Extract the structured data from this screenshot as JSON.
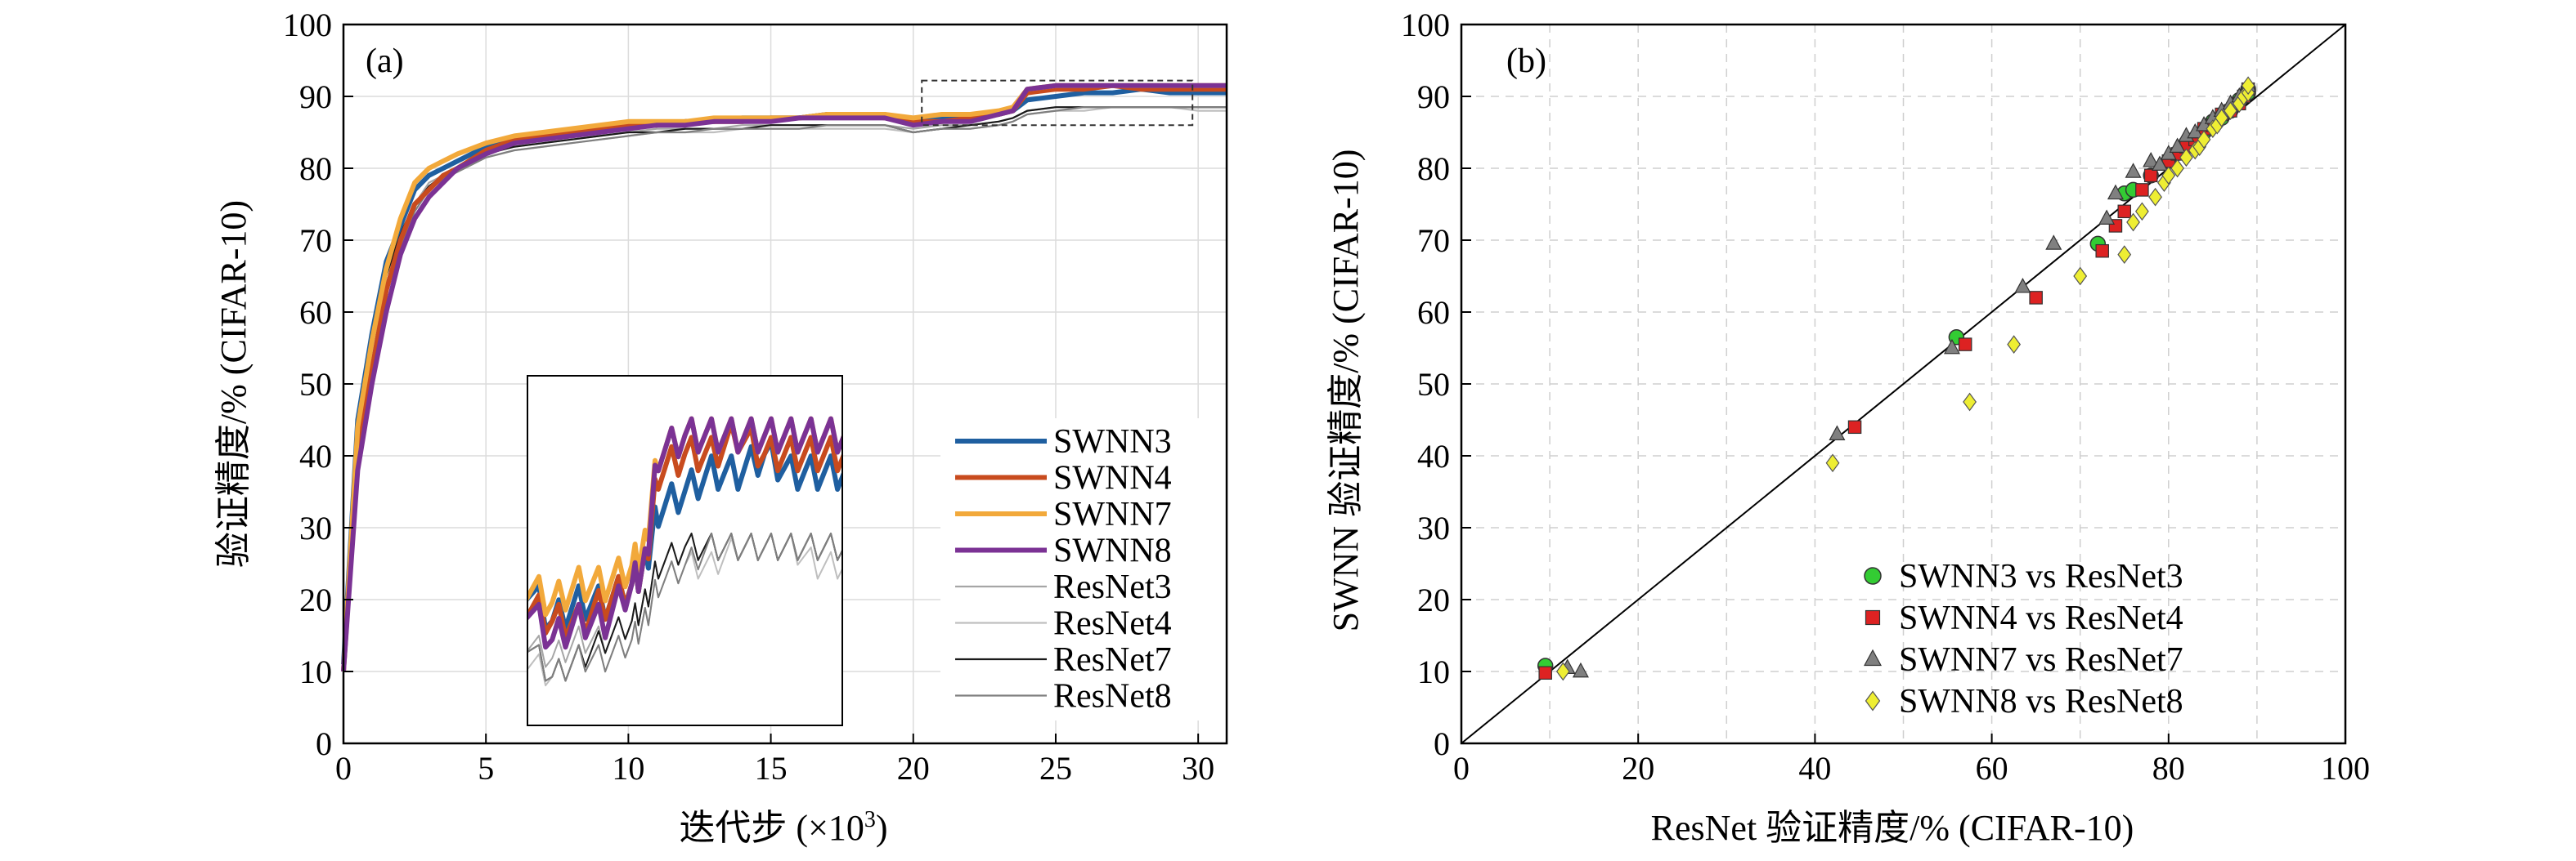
{
  "chart_data": [
    {
      "panel": "(a)",
      "type": "line",
      "xlabel": "迭代步 (×10³)",
      "xlabel_prefix": "迭代步 (×10",
      "xlabel_sup": "3",
      "xlabel_suffix": ")",
      "ylabel": "验证精度/% (CIFAR-10)",
      "xlim": [
        0,
        31
      ],
      "ylim": [
        0,
        100
      ],
      "xticks": [
        0,
        5,
        10,
        15,
        20,
        25,
        30
      ],
      "yticks": [
        0,
        10,
        20,
        30,
        40,
        50,
        60,
        70,
        80,
        90,
        100
      ],
      "grid": true,
      "legend_position": "right",
      "zoom_box": {
        "x": [
          20.3,
          29.8
        ],
        "y": [
          86,
          92.2
        ]
      },
      "series": [
        {
          "name": "SWNN3",
          "color": "#1f5fa0",
          "style": "thick",
          "x": [
            0,
            0.5,
            1,
            1.5,
            2,
            2.5,
            3,
            3.5,
            4,
            5,
            6,
            7,
            8,
            9,
            10,
            11,
            12,
            13,
            14,
            15,
            16,
            17,
            18,
            19,
            20,
            21,
            22,
            23,
            23.5,
            24,
            25,
            26,
            27,
            28,
            29,
            30,
            31
          ],
          "y": [
            11,
            45,
            57,
            67,
            72,
            77,
            79,
            80,
            81,
            83,
            84,
            84.5,
            85,
            85.5,
            86,
            86,
            86.5,
            86.5,
            87,
            87,
            87,
            87.5,
            87.5,
            87.5,
            86.5,
            87,
            87,
            87.5,
            88,
            89.5,
            90,
            90.5,
            90.5,
            91,
            90.5,
            90.5,
            90.5
          ]
        },
        {
          "name": "SWNN4",
          "color": "#c84b1e",
          "style": "thick",
          "x": [
            0,
            0.5,
            1,
            1.5,
            2,
            2.5,
            3,
            3.5,
            4,
            5,
            6,
            7,
            8,
            9,
            10,
            11,
            12,
            13,
            14,
            15,
            16,
            17,
            18,
            19,
            20,
            21,
            22,
            23,
            23.5,
            24,
            25,
            26,
            27,
            28,
            29,
            30,
            31
          ],
          "y": [
            10,
            40,
            52,
            63,
            70,
            75,
            77,
            79,
            80,
            82.5,
            84,
            84.5,
            85,
            85.5,
            86,
            86,
            86.5,
            86.5,
            86.5,
            87,
            87,
            87.5,
            87.5,
            87,
            86.5,
            86.5,
            87,
            87.5,
            88,
            90.5,
            91,
            91,
            91.5,
            91,
            91,
            91,
            91
          ]
        },
        {
          "name": "SWNN7",
          "color": "#f2a93b",
          "style": "thick",
          "x": [
            0,
            0.5,
            1,
            1.5,
            2,
            2.5,
            3,
            3.5,
            4,
            5,
            6,
            7,
            8,
            9,
            10,
            11,
            12,
            13,
            14,
            15,
            16,
            17,
            18,
            19,
            20,
            21,
            22,
            23,
            23.5,
            24,
            25,
            26,
            27,
            28,
            29,
            30,
            31
          ],
          "y": [
            10,
            44,
            56,
            66,
            73,
            78,
            80,
            81,
            82,
            83.5,
            84.5,
            85,
            85.5,
            86,
            86.5,
            86.5,
            86.5,
            87,
            87,
            87,
            87,
            87.5,
            87.5,
            87.5,
            87,
            87.5,
            87.5,
            88,
            88.5,
            91,
            91.5,
            91.5,
            91.5,
            91.5,
            91.5,
            91.5,
            91.5
          ]
        },
        {
          "name": "SWNN8",
          "color": "#7b3294",
          "style": "thick",
          "x": [
            0,
            0.5,
            1,
            1.5,
            2,
            2.5,
            3,
            3.5,
            4,
            5,
            6,
            7,
            8,
            9,
            10,
            11,
            12,
            13,
            14,
            15,
            16,
            17,
            18,
            19,
            20,
            21,
            22,
            23,
            23.5,
            24,
            25,
            26,
            27,
            28,
            29,
            30,
            31
          ],
          "y": [
            10,
            38,
            50,
            60,
            68,
            73,
            76,
            78,
            80,
            82,
            83.5,
            84,
            84.5,
            85,
            85.5,
            86,
            86,
            86.5,
            86.5,
            86.5,
            87,
            87,
            87,
            87,
            86,
            86.5,
            86.5,
            87.5,
            88,
            91,
            91.5,
            91.5,
            91.5,
            91.5,
            91.5,
            91.5,
            91.5
          ]
        },
        {
          "name": "ResNet3",
          "color": "#a6a6a6",
          "style": "thin",
          "x": [
            0,
            0.5,
            1,
            1.5,
            2,
            2.5,
            3,
            3.5,
            4,
            5,
            6,
            7,
            8,
            9,
            10,
            11,
            12,
            13,
            14,
            15,
            16,
            17,
            18,
            19,
            20,
            21,
            22,
            23,
            23.5,
            24,
            25,
            26,
            27,
            28,
            29,
            30,
            31
          ],
          "y": [
            10,
            43,
            55,
            65,
            71,
            75,
            78,
            79,
            80,
            82,
            83,
            83.5,
            84,
            84.5,
            85,
            85.5,
            85.5,
            85.5,
            86,
            86,
            86,
            86,
            86,
            86,
            85.5,
            86,
            86,
            86.5,
            87,
            88,
            88.5,
            88.5,
            88.5,
            88.5,
            88.5,
            88.5,
            88.5
          ]
        },
        {
          "name": "ResNet4",
          "color": "#bfbfbf",
          "style": "thin",
          "x": [
            0,
            0.5,
            1,
            1.5,
            2,
            2.5,
            3,
            3.5,
            4,
            5,
            6,
            7,
            8,
            9,
            10,
            11,
            12,
            13,
            14,
            15,
            16,
            17,
            18,
            19,
            20,
            21,
            22,
            23,
            23.5,
            24,
            25,
            26,
            27,
            28,
            29,
            30,
            31
          ],
          "y": [
            10,
            42,
            54,
            64,
            70,
            74,
            77,
            78.5,
            79.5,
            81.5,
            82.5,
            83,
            83.5,
            84,
            84.5,
            85,
            85,
            85,
            85.5,
            85.5,
            85.5,
            85.5,
            85.5,
            85.5,
            85,
            85.5,
            85.5,
            86,
            86.5,
            87.5,
            88,
            88,
            88.5,
            88.5,
            88.5,
            88,
            88
          ]
        },
        {
          "name": "ResNet7",
          "color": "#1a1a1a",
          "style": "thin",
          "x": [
            0,
            0.5,
            1,
            1.5,
            2,
            2.5,
            3,
            3.5,
            4,
            5,
            6,
            7,
            8,
            9,
            10,
            11,
            12,
            13,
            14,
            15,
            16,
            17,
            18,
            19,
            20,
            21,
            22,
            23,
            23.5,
            24,
            25,
            26,
            27,
            28,
            29,
            30,
            31
          ],
          "y": [
            10,
            42,
            55,
            65,
            71,
            75,
            77.5,
            79,
            80,
            82,
            83,
            83.5,
            84,
            84.5,
            85,
            85,
            85.5,
            85.5,
            85.5,
            86,
            86,
            86,
            86,
            86,
            85,
            85.5,
            86,
            86.5,
            87,
            88,
            88.5,
            88.5,
            88.5,
            88.5,
            88.5,
            88.5,
            88.5
          ]
        },
        {
          "name": "ResNet8",
          "color": "#7f7f7f",
          "style": "thin",
          "x": [
            0,
            0.5,
            1,
            1.5,
            2,
            2.5,
            3,
            3.5,
            4,
            5,
            6,
            7,
            8,
            9,
            10,
            11,
            12,
            13,
            14,
            15,
            16,
            17,
            18,
            19,
            20,
            21,
            22,
            23,
            23.5,
            24,
            25,
            26,
            27,
            28,
            29,
            30,
            31
          ],
          "y": [
            10,
            41,
            53,
            63,
            69,
            74,
            77,
            78.5,
            79.5,
            81.5,
            82.5,
            83,
            83.5,
            84,
            84.5,
            85,
            85,
            85.5,
            85.5,
            85.5,
            85.5,
            86,
            86,
            86,
            85,
            85.5,
            85.5,
            86,
            86.5,
            87.5,
            88,
            88.5,
            88.5,
            88.5,
            88.5,
            88.5,
            88.5
          ]
        }
      ]
    },
    {
      "panel": "(b)",
      "type": "scatter",
      "xlabel": "ResNet 验证精度/% (CIFAR-10)",
      "ylabel": "SWNN 验证精度/% (CIFAR-10)",
      "xlim": [
        0,
        100
      ],
      "ylim": [
        0,
        100
      ],
      "xticks": [
        0,
        20,
        40,
        60,
        80,
        100
      ],
      "yticks": [
        0,
        10,
        20,
        30,
        40,
        50,
        60,
        70,
        80,
        90,
        100
      ],
      "grid": true,
      "diagonal": true,
      "legend_position": "bottom-right",
      "series": [
        {
          "name": "SWNN3 vs ResNet3",
          "marker": "circle",
          "color": "#33cc33",
          "points": [
            [
              9.5,
              10.8
            ],
            [
              56,
              56.5
            ],
            [
              72,
              69.5
            ],
            [
              75,
              76.5
            ],
            [
              76,
              77
            ],
            [
              78,
              79
            ],
            [
              80,
              81
            ],
            [
              82,
              83.5
            ],
            [
              83,
              84
            ],
            [
              84,
              85
            ],
            [
              85,
              86.5
            ],
            [
              86,
              87
            ],
            [
              87,
              88
            ],
            [
              88,
              89.5
            ],
            [
              88.5,
              90
            ],
            [
              89,
              90.5
            ],
            [
              89,
              91
            ]
          ]
        },
        {
          "name": "SWNN4 vs ResNet4",
          "marker": "square",
          "color": "#dd2222",
          "points": [
            [
              9.5,
              9.8
            ],
            [
              44.5,
              44
            ],
            [
              57,
              55.5
            ],
            [
              65,
              62
            ],
            [
              72.5,
              68.5
            ],
            [
              74,
              72
            ],
            [
              75,
              74
            ],
            [
              77,
              77
            ],
            [
              78,
              79
            ],
            [
              80,
              81
            ],
            [
              81,
              82
            ],
            [
              82,
              83
            ],
            [
              83,
              84
            ],
            [
              84,
              85.5
            ],
            [
              85,
              86
            ],
            [
              86,
              87.5
            ],
            [
              87,
              88
            ],
            [
              88,
              89
            ],
            [
              88.5,
              90
            ],
            [
              89,
              91
            ]
          ]
        },
        {
          "name": "SWNN7 vs ResNet7",
          "marker": "triangle",
          "color": "#808080",
          "points": [
            [
              12,
              10.5
            ],
            [
              13.5,
              10
            ],
            [
              42.5,
              43
            ],
            [
              55.5,
              55
            ],
            [
              63.5,
              63.5
            ],
            [
              67,
              69.5
            ],
            [
              73,
              73
            ],
            [
              74,
              76.5
            ],
            [
              76,
              79.5
            ],
            [
              78,
              81
            ],
            [
              79,
              80.5
            ],
            [
              80,
              82
            ],
            [
              81,
              83
            ],
            [
              82,
              84.5
            ],
            [
              83,
              85
            ],
            [
              84,
              86
            ],
            [
              85,
              87
            ],
            [
              86,
              88
            ],
            [
              87,
              89
            ],
            [
              88,
              90
            ],
            [
              89,
              91.5
            ]
          ]
        },
        {
          "name": "SWNN8 vs ResNet8",
          "marker": "diamond",
          "color": "#eeee33",
          "points": [
            [
              11.5,
              10
            ],
            [
              42,
              39
            ],
            [
              57.5,
              47.5
            ],
            [
              62.5,
              55.5
            ],
            [
              70,
              65
            ],
            [
              75,
              68
            ],
            [
              76,
              72.5
            ],
            [
              77,
              74
            ],
            [
              78.5,
              76
            ],
            [
              79.5,
              78
            ],
            [
              80,
              79
            ],
            [
              81,
              80
            ],
            [
              82,
              81.5
            ],
            [
              83,
              82.5
            ],
            [
              83.5,
              83
            ],
            [
              84,
              84
            ],
            [
              85,
              85.5
            ],
            [
              85.5,
              86
            ],
            [
              86,
              87
            ],
            [
              87,
              88
            ],
            [
              88,
              89
            ],
            [
              88.5,
              90
            ],
            [
              89,
              90.5
            ],
            [
              89,
              91.5
            ]
          ]
        }
      ]
    }
  ]
}
